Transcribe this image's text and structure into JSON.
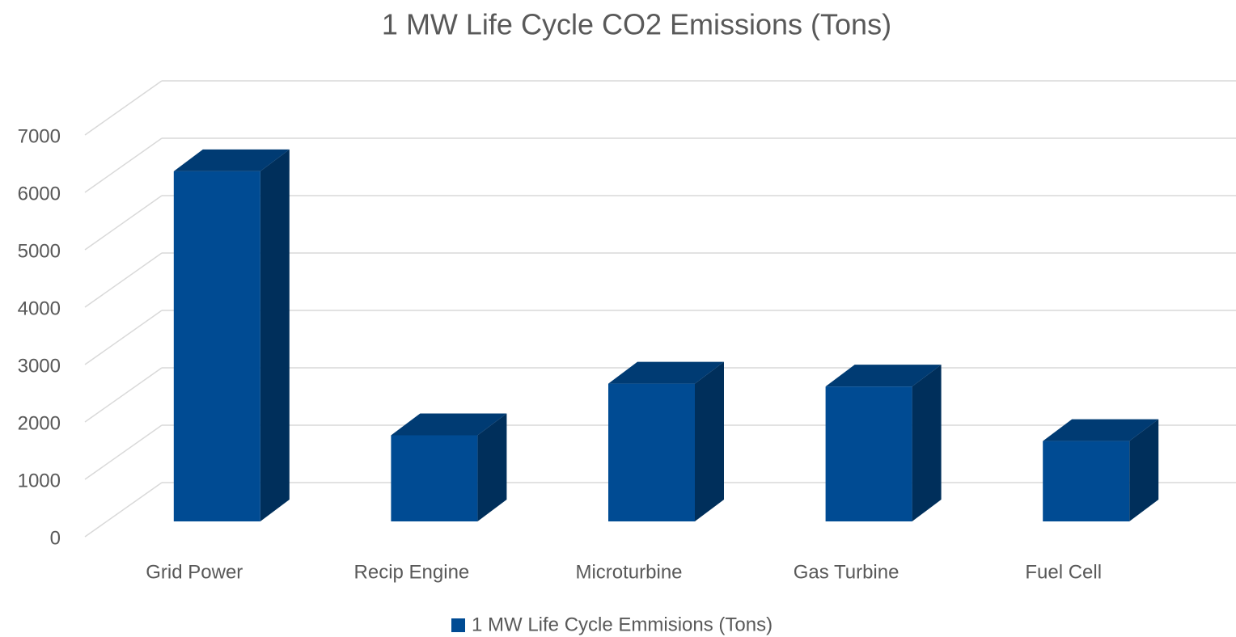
{
  "chart_data": {
    "type": "bar3d",
    "title": "1 MW Life Cycle CO2 Emissions (Tons)",
    "categories": [
      "Grid Power",
      "Recip Engine",
      "Microturbine",
      "Gas Turbine",
      "Fuel Cell"
    ],
    "series": [
      {
        "name": "1 MW Life Cycle Emmisions (Tons)",
        "color": "#004b93",
        "values": [
          6100,
          1500,
          2400,
          2350,
          1400
        ]
      }
    ],
    "ylim": [
      0,
      7000
    ],
    "yticks": [
      0,
      1000,
      2000,
      3000,
      4000,
      5000,
      6000,
      7000
    ],
    "grid": true,
    "legend": "bottom"
  }
}
